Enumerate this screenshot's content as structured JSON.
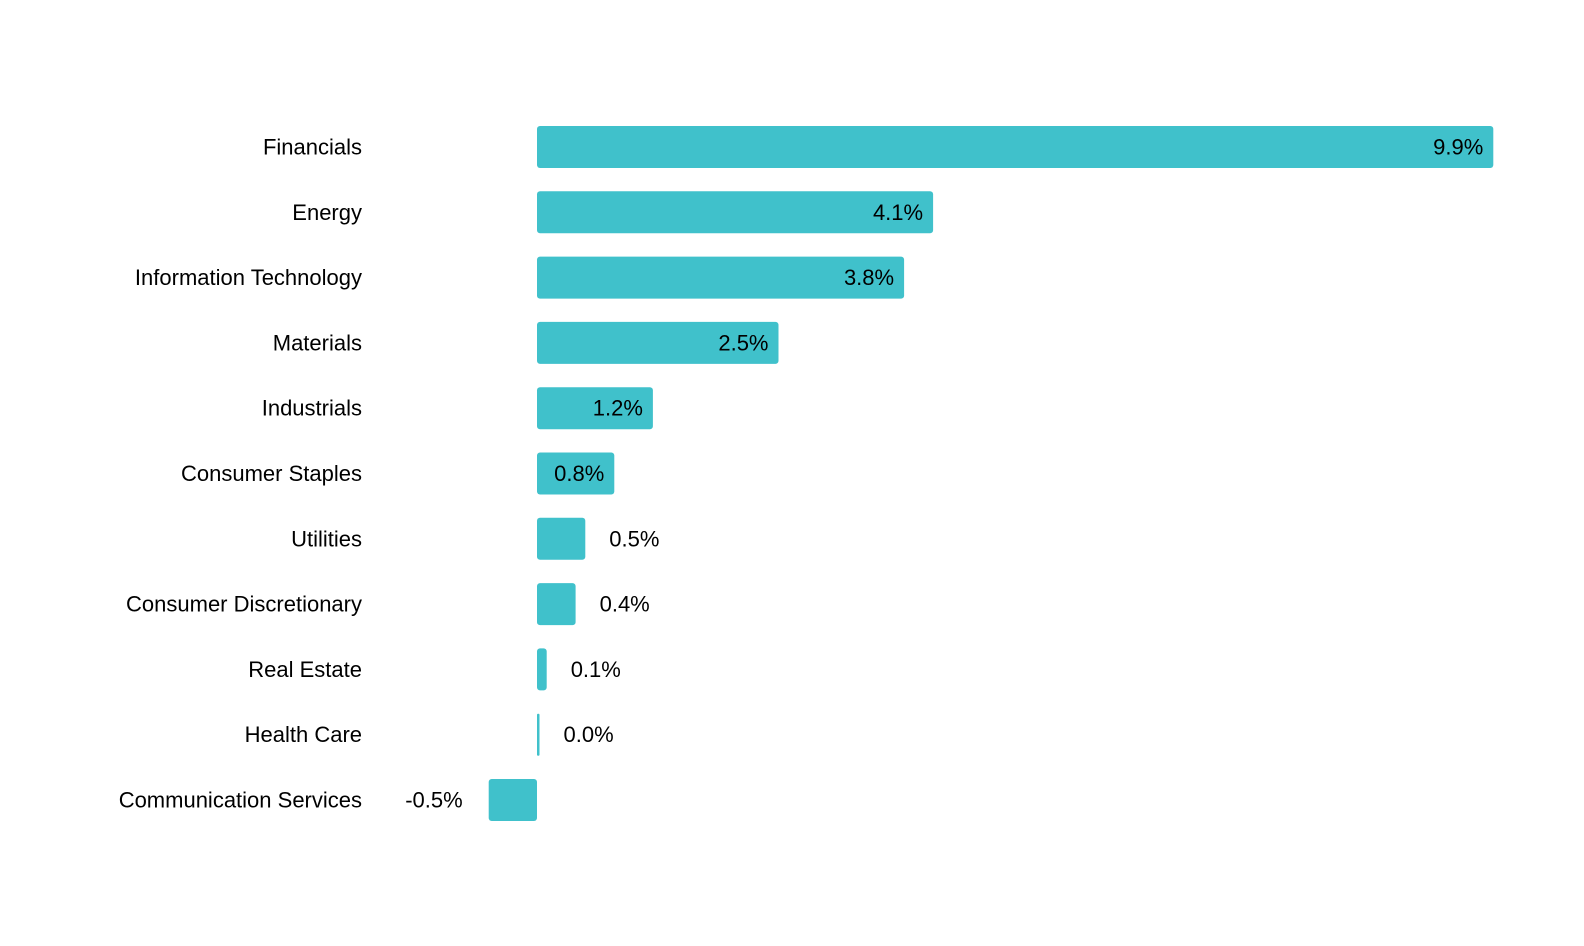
{
  "chart_data": {
    "type": "bar",
    "orientation": "horizontal",
    "categories": [
      "Financials",
      "Energy",
      "Information Technology",
      "Materials",
      "Industrials",
      "Consumer Staples",
      "Utilities",
      "Consumer Discretionary",
      "Real Estate",
      "Health Care",
      "Communication Services"
    ],
    "values": [
      9.9,
      4.1,
      3.8,
      2.5,
      1.2,
      0.8,
      0.5,
      0.4,
      0.1,
      0.0,
      -0.5
    ],
    "value_labels": [
      "9.9%",
      "4.1%",
      "3.8%",
      "2.5%",
      "1.2%",
      "0.8%",
      "0.5%",
      "0.4%",
      "0.1%",
      "0.0%",
      "-0.5%"
    ],
    "unit": "%",
    "xlim": [
      -0.5,
      9.9
    ],
    "grid": false,
    "legend": "none",
    "bar_color": "#40C1CB"
  }
}
